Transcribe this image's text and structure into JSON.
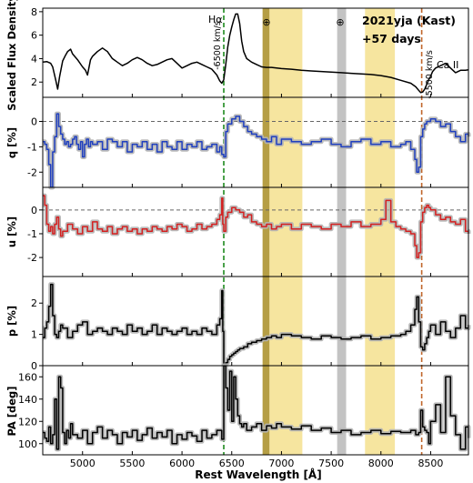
{
  "chart_data": {
    "type": "line",
    "object": "2021yja (Kast)",
    "epoch": "+57 days",
    "xlabel": "Rest Wavelength [Å]",
    "xlim": [
      4600,
      8880
    ],
    "xticks": [
      5000,
      5500,
      6000,
      6500,
      7000,
      7500,
      8000,
      8500
    ],
    "bands": [
      {
        "x0": 6810,
        "x1": 6880,
        "color": "#a88d25"
      },
      {
        "x0": 6880,
        "x1": 7210,
        "color": "#f5e08e"
      },
      {
        "x0": 7560,
        "x1": 7650,
        "color": "#b8b8b8"
      },
      {
        "x0": 7840,
        "x1": 8140,
        "color": "#f5e08e"
      }
    ],
    "telluric_markers": [
      {
        "x": 6870,
        "label": "⊕"
      },
      {
        "x": 7605,
        "label": "⊕"
      }
    ],
    "lines": [
      {
        "x": 6420,
        "color": "#1e8a1e",
        "label": "-6500 km/s",
        "line_label": "Hα"
      },
      {
        "x": 8410,
        "color": "#c0662a",
        "label": "-5500 km/s",
        "line_label": "Ca II"
      }
    ],
    "panels": [
      {
        "id": "flux",
        "ylabel": "Scaled Flux Density",
        "ylim": [
          0.7,
          8.3
        ],
        "yticks": [
          2,
          4,
          6,
          8
        ],
        "zero_line": false,
        "color": "#000000",
        "x": [
          4600,
          4640,
          4680,
          4700,
          4730,
          4750,
          4770,
          4800,
          4830,
          4850,
          4880,
          4900,
          4950,
          5000,
          5030,
          5050,
          5080,
          5100,
          5150,
          5200,
          5250,
          5300,
          5350,
          5400,
          5450,
          5500,
          5550,
          5600,
          5650,
          5700,
          5750,
          5800,
          5850,
          5900,
          5950,
          6000,
          6050,
          6100,
          6150,
          6200,
          6250,
          6300,
          6350,
          6380,
          6400,
          6420,
          6440,
          6460,
          6480,
          6500,
          6520,
          6540,
          6560,
          6580,
          6600,
          6620,
          6650,
          6700,
          6750,
          6800,
          6850,
          6900,
          6950,
          7000,
          7100,
          7200,
          7300,
          7400,
          7500,
          7600,
          7700,
          7800,
          7900,
          8000,
          8100,
          8200,
          8300,
          8350,
          8380,
          8400,
          8420,
          8440,
          8460,
          8480,
          8500,
          8520,
          8550,
          8600,
          8650,
          8700,
          8750,
          8800,
          8850,
          8880
        ],
        "y": [
          3.7,
          3.75,
          3.6,
          3.3,
          2.2,
          1.4,
          2.5,
          3.8,
          4.3,
          4.6,
          4.8,
          4.4,
          3.9,
          3.3,
          3.0,
          2.6,
          3.9,
          4.2,
          4.6,
          4.9,
          4.6,
          4.0,
          3.7,
          3.4,
          3.6,
          3.9,
          4.1,
          3.9,
          3.6,
          3.4,
          3.5,
          3.7,
          3.9,
          4.0,
          3.6,
          3.2,
          3.4,
          3.6,
          3.7,
          3.5,
          3.3,
          3.1,
          2.6,
          2.1,
          1.9,
          2.2,
          3.5,
          5.0,
          6.0,
          6.7,
          7.3,
          7.8,
          7.8,
          7.0,
          5.5,
          4.6,
          4.0,
          3.7,
          3.5,
          3.3,
          3.25,
          3.25,
          3.2,
          3.15,
          3.1,
          3.0,
          2.95,
          2.9,
          2.85,
          2.8,
          2.75,
          2.7,
          2.65,
          2.55,
          2.4,
          2.15,
          1.9,
          1.6,
          1.3,
          1.1,
          1.15,
          1.4,
          1.8,
          2.2,
          2.5,
          2.9,
          3.2,
          3.4,
          3.6,
          3.2,
          2.8,
          3.0,
          3.0,
          3.05
        ]
      },
      {
        "id": "q",
        "ylabel": "q [%]",
        "ylim": [
          -2.6,
          0.95
        ],
        "yticks": [
          0,
          -1,
          -2
        ],
        "zero_line": true,
        "color": "#1f3fbf",
        "x": [
          4600,
          4620,
          4640,
          4660,
          4680,
          4700,
          4720,
          4740,
          4760,
          4780,
          4800,
          4820,
          4840,
          4860,
          4880,
          4900,
          4920,
          4940,
          4960,
          4980,
          5000,
          5020,
          5040,
          5060,
          5080,
          5100,
          5150,
          5200,
          5250,
          5300,
          5350,
          5400,
          5450,
          5500,
          5550,
          5600,
          5650,
          5700,
          5750,
          5800,
          5850,
          5900,
          5950,
          6000,
          6050,
          6100,
          6150,
          6200,
          6250,
          6300,
          6350,
          6380,
          6400,
          6420,
          6440,
          6460,
          6500,
          6540,
          6580,
          6620,
          6660,
          6700,
          6750,
          6800,
          6850,
          6900,
          6950,
          7000,
          7100,
          7200,
          7300,
          7400,
          7500,
          7600,
          7700,
          7800,
          7900,
          8000,
          8100,
          8200,
          8250,
          8300,
          8340,
          8360,
          8380,
          8400,
          8420,
          8440,
          8460,
          8480,
          8500,
          8550,
          8600,
          8650,
          8700,
          8750,
          8800,
          8850,
          8880
        ],
        "y": [
          -0.8,
          -0.9,
          -1.1,
          -1.7,
          -2.6,
          -1.2,
          -0.6,
          0.3,
          -0.2,
          -0.5,
          -0.7,
          -0.9,
          -0.8,
          -1.0,
          -0.9,
          -0.7,
          -0.6,
          -0.9,
          -1.1,
          -0.8,
          -1.4,
          -0.9,
          -0.7,
          -1.0,
          -0.8,
          -0.9,
          -0.8,
          -1.1,
          -0.7,
          -0.8,
          -1.0,
          -0.8,
          -1.2,
          -0.9,
          -1.0,
          -0.8,
          -1.1,
          -0.9,
          -1.2,
          -0.8,
          -1.0,
          -1.1,
          -0.8,
          -1.1,
          -0.9,
          -1.0,
          -0.8,
          -1.1,
          -1.0,
          -0.9,
          -1.2,
          -1.0,
          -1.3,
          -1.4,
          -0.4,
          -0.1,
          0.1,
          0.2,
          0.0,
          -0.2,
          -0.4,
          -0.5,
          -0.6,
          -0.7,
          -0.8,
          -0.6,
          -0.9,
          -0.7,
          -0.8,
          -0.9,
          -0.8,
          -0.7,
          -0.9,
          -1.0,
          -0.8,
          -0.7,
          -0.9,
          -0.8,
          -1.0,
          -0.9,
          -0.8,
          -1.1,
          -1.5,
          -2.0,
          -1.8,
          -0.6,
          -0.3,
          -0.1,
          0.0,
          0.0,
          0.1,
          0.0,
          -0.2,
          -0.1,
          -0.4,
          -0.6,
          -0.8,
          -0.5,
          -0.6
        ]
      },
      {
        "id": "u",
        "ylabel": "u [%]",
        "ylim": [
          -2.8,
          0.95
        ],
        "yticks": [
          0,
          -1,
          -2
        ],
        "zero_line": true,
        "color": "#d42020",
        "x": [
          4600,
          4620,
          4640,
          4660,
          4680,
          4700,
          4720,
          4740,
          4760,
          4780,
          4800,
          4850,
          4900,
          4950,
          5000,
          5050,
          5100,
          5150,
          5200,
          5250,
          5300,
          5350,
          5400,
          5450,
          5500,
          5550,
          5600,
          5650,
          5700,
          5750,
          5800,
          5850,
          5900,
          5950,
          6000,
          6050,
          6100,
          6150,
          6200,
          6250,
          6300,
          6350,
          6380,
          6400,
          6410,
          6420,
          6440,
          6460,
          6500,
          6540,
          6580,
          6620,
          6660,
          6700,
          6750,
          6800,
          6850,
          6900,
          6950,
          7000,
          7100,
          7200,
          7300,
          7400,
          7500,
          7600,
          7700,
          7800,
          7900,
          8000,
          8050,
          8100,
          8150,
          8200,
          8250,
          8300,
          8340,
          8360,
          8380,
          8400,
          8420,
          8440,
          8460,
          8480,
          8500,
          8550,
          8600,
          8650,
          8700,
          8750,
          8800,
          8850,
          8880
        ],
        "y": [
          0.6,
          0.2,
          -0.6,
          -0.9,
          -0.7,
          -1.0,
          -0.6,
          -0.3,
          -0.8,
          -1.1,
          -0.9,
          -0.6,
          -0.8,
          -1.0,
          -0.7,
          -0.9,
          -0.5,
          -0.8,
          -0.9,
          -0.7,
          -1.0,
          -0.8,
          -0.7,
          -0.9,
          -0.8,
          -1.0,
          -0.8,
          -0.9,
          -0.7,
          -0.8,
          -0.9,
          -0.7,
          -0.8,
          -0.6,
          -0.7,
          -0.9,
          -0.8,
          -0.6,
          -0.8,
          -0.7,
          -0.6,
          -0.4,
          -0.2,
          0.5,
          -0.6,
          -0.9,
          -0.3,
          -0.1,
          0.1,
          0.0,
          -0.1,
          -0.3,
          -0.2,
          -0.5,
          -0.6,
          -0.7,
          -0.6,
          -0.8,
          -0.7,
          -0.6,
          -0.8,
          -0.6,
          -0.7,
          -0.8,
          -0.6,
          -0.7,
          -0.5,
          -0.7,
          -0.6,
          -0.4,
          0.4,
          -0.5,
          -0.7,
          -0.8,
          -0.9,
          -1.0,
          -1.5,
          -2.0,
          -1.8,
          -0.5,
          -0.1,
          0.1,
          0.2,
          0.1,
          0.0,
          -0.2,
          -0.4,
          -0.3,
          -0.5,
          -0.6,
          -0.4,
          -0.9,
          -1.0
        ]
      },
      {
        "id": "p",
        "ylabel": "p [%]",
        "ylim": [
          0,
          2.85
        ],
        "yticks": [
          0,
          1,
          2
        ],
        "zero_line": true,
        "color": "#000000",
        "x": [
          4600,
          4620,
          4640,
          4660,
          4680,
          4700,
          4720,
          4740,
          4760,
          4780,
          4800,
          4850,
          4900,
          4950,
          5000,
          5050,
          5100,
          5150,
          5200,
          5250,
          5300,
          5350,
          5400,
          5450,
          5500,
          5550,
          5600,
          5650,
          5700,
          5750,
          5800,
          5850,
          5900,
          5950,
          6000,
          6050,
          6100,
          6150,
          6200,
          6250,
          6300,
          6350,
          6380,
          6400,
          6410,
          6420,
          6440,
          6460,
          6480,
          6500,
          6520,
          6540,
          6560,
          6580,
          6620,
          6660,
          6700,
          6750,
          6800,
          6850,
          6900,
          6950,
          7000,
          7100,
          7200,
          7300,
          7400,
          7500,
          7600,
          7700,
          7800,
          7900,
          8000,
          8100,
          8200,
          8250,
          8300,
          8340,
          8360,
          8380,
          8400,
          8420,
          8440,
          8460,
          8480,
          8500,
          8550,
          8600,
          8650,
          8700,
          8750,
          8800,
          8850,
          8880
        ],
        "y": [
          0.9,
          1.2,
          1.4,
          1.9,
          2.6,
          1.6,
          1.0,
          0.9,
          1.1,
          1.3,
          1.2,
          0.9,
          1.1,
          1.3,
          1.4,
          1.0,
          1.1,
          1.2,
          1.1,
          1.0,
          1.2,
          1.1,
          1.0,
          1.3,
          1.1,
          1.2,
          1.0,
          1.1,
          1.3,
          1.0,
          1.2,
          1.1,
          1.0,
          1.1,
          1.2,
          1.0,
          1.1,
          1.0,
          1.2,
          1.1,
          1.0,
          1.3,
          1.5,
          2.4,
          1.1,
          0.0,
          0.1,
          0.2,
          0.3,
          0.35,
          0.4,
          0.45,
          0.5,
          0.55,
          0.6,
          0.7,
          0.75,
          0.8,
          0.85,
          0.9,
          0.95,
          0.9,
          1.0,
          0.95,
          0.9,
          0.85,
          0.95,
          0.9,
          0.85,
          0.9,
          0.95,
          0.85,
          0.9,
          0.95,
          1.0,
          1.1,
          1.3,
          1.8,
          2.2,
          1.4,
          0.6,
          0.5,
          0.7,
          0.9,
          1.1,
          1.3,
          1.0,
          1.4,
          1.1,
          0.9,
          1.2,
          1.6,
          1.2,
          1.3
        ]
      },
      {
        "id": "pa",
        "ylabel": "PA [deg]",
        "ylim": [
          90,
          170
        ],
        "yticks": [
          100,
          120,
          140,
          160
        ],
        "zero_line": false,
        "color": "#000000",
        "x": [
          4600,
          4620,
          4640,
          4660,
          4680,
          4700,
          4720,
          4740,
          4760,
          4780,
          4800,
          4820,
          4840,
          4860,
          4880,
          4900,
          4950,
          5000,
          5050,
          5100,
          5150,
          5200,
          5250,
          5300,
          5350,
          5400,
          5450,
          5500,
          5550,
          5600,
          5650,
          5700,
          5750,
          5800,
          5850,
          5900,
          5950,
          6000,
          6050,
          6100,
          6150,
          6200,
          6250,
          6300,
          6350,
          6400,
          6420,
          6440,
          6460,
          6480,
          6500,
          6520,
          6540,
          6560,
          6580,
          6600,
          6620,
          6650,
          6700,
          6750,
          6800,
          6850,
          6900,
          6950,
          7000,
          7100,
          7200,
          7300,
          7400,
          7500,
          7600,
          7700,
          7800,
          7900,
          8000,
          8100,
          8200,
          8300,
          8350,
          8380,
          8400,
          8420,
          8440,
          8460,
          8480,
          8500,
          8550,
          8600,
          8650,
          8700,
          8750,
          8800,
          8850,
          8880
        ],
        "y": [
          110,
          105,
          102,
          115,
          100,
          108,
          140,
          95,
          160,
          150,
          110,
          100,
          112,
          105,
          118,
          108,
          105,
          112,
          100,
          110,
          115,
          105,
          112,
          108,
          100,
          110,
          106,
          112,
          103,
          108,
          114,
          105,
          110,
          106,
          112,
          100,
          108,
          104,
          110,
          107,
          102,
          112,
          105,
          108,
          112,
          104,
          170,
          150,
          130,
          165,
          120,
          160,
          140,
          125,
          118,
          115,
          118,
          112,
          115,
          118,
          112,
          116,
          114,
          118,
          115,
          113,
          116,
          112,
          114,
          110,
          112,
          108,
          110,
          112,
          109,
          111,
          110,
          112,
          108,
          110,
          130,
          115,
          112,
          110,
          100,
          120,
          135,
          110,
          160,
          125,
          108,
          95,
          115,
          105
        ]
      }
    ]
  }
}
